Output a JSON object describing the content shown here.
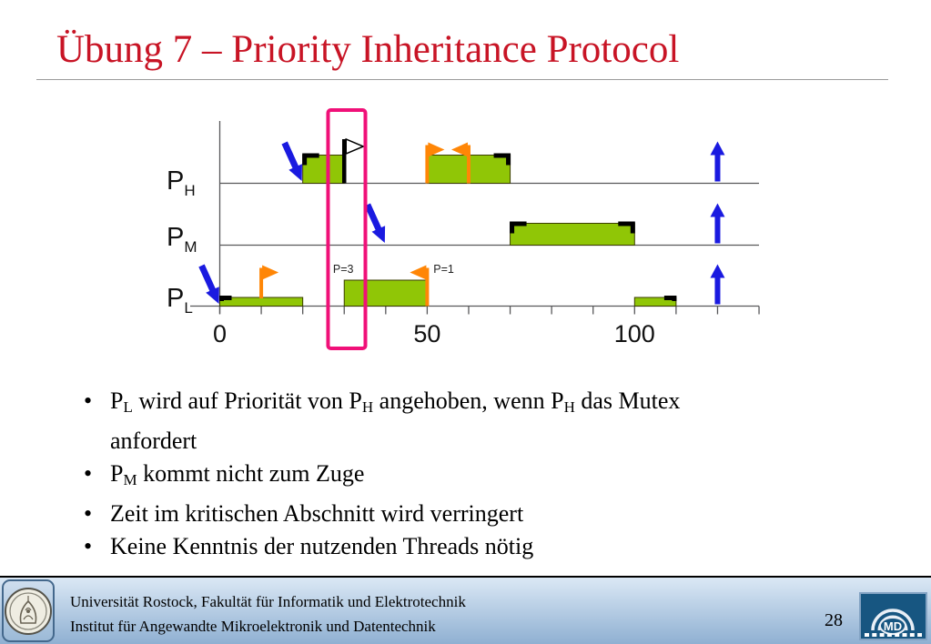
{
  "slide": {
    "title": "Übung 7 – Priority Inheritance Protocol"
  },
  "colors": {
    "title_red": "#c81425",
    "bar_green": "#90c606",
    "bar_border": "#3a3c00",
    "arrow_blue": "#1a1ae0",
    "flag_orange": "#ff8606",
    "highlight_pink": "#f01078",
    "axis_gray": "#58585a",
    "footer_top": "#dbe8f5",
    "footer_bottom": "#8fb0d2",
    "md_logo_blue": "#175681"
  },
  "diagram": {
    "row_labels": [
      {
        "id": "PH",
        "main": "P",
        "sub": "H"
      },
      {
        "id": "PM",
        "main": "P",
        "sub": "M"
      },
      {
        "id": "PL",
        "main": "P",
        "sub": "L"
      }
    ],
    "time_axis": {
      "start": 0,
      "end": 130,
      "tick_step": 10,
      "labels": [
        {
          "t": 0,
          "text": "0"
        },
        {
          "t": 50,
          "text": "50"
        },
        {
          "t": 100,
          "text": "100"
        }
      ]
    },
    "bars": [
      {
        "row": "PH",
        "t0": 20,
        "t1": 30,
        "size": "tall",
        "brackets": [
          "tl"
        ]
      },
      {
        "row": "PH",
        "t0": 50,
        "t1": 70,
        "size": "tall",
        "brackets": [
          "tr"
        ]
      },
      {
        "row": "PM",
        "t0": 70,
        "t1": 100,
        "size": "tall",
        "brackets": [
          "tl",
          "tr"
        ]
      },
      {
        "row": "PL",
        "t0": 0,
        "t1": 20,
        "size": "short",
        "brackets": [
          "tl"
        ]
      },
      {
        "row": "PL",
        "t0": 30,
        "t1": 50,
        "size": "tall",
        "brackets": []
      },
      {
        "row": "PL",
        "t0": 100,
        "t1": 110,
        "size": "short",
        "brackets": [
          "tr"
        ]
      }
    ],
    "activation_arrows": [
      {
        "row": "PH",
        "t": 20
      },
      {
        "row": "PM",
        "t": 40
      },
      {
        "row": "PL",
        "t": 0
      }
    ],
    "completion_arrows": [
      {
        "row": "PH",
        "t": 120
      },
      {
        "row": "PM",
        "t": 120
      },
      {
        "row": "PL",
        "t": 120
      }
    ],
    "mutex_flags": [
      {
        "row": "PL",
        "t": 10,
        "dir": "right",
        "pole": "bartop"
      },
      {
        "row": "PL",
        "t": 50,
        "dir": "left",
        "pole": "baseline"
      },
      {
        "row": "PH",
        "t": 50,
        "dir": "right",
        "pole": "baseline"
      },
      {
        "row": "PH",
        "t": 60,
        "dir": "left",
        "pole": "baseline"
      }
    ],
    "request_flag": {
      "row": "PH",
      "t": 30,
      "dir": "right"
    },
    "priority_labels": [
      {
        "text": "P=3",
        "t": 27.3
      },
      {
        "text": "P=1",
        "t": 51.5
      }
    ],
    "highlight": {
      "t0": 26.1,
      "t1": 35.1
    }
  },
  "bullets": [
    {
      "segments": [
        {
          "t": "P"
        },
        {
          "sub": "L"
        },
        {
          "t": " wird auf Priorität von P"
        },
        {
          "sub": "H"
        },
        {
          "t": " angehoben, wenn P"
        },
        {
          "sub": "H"
        },
        {
          "t": " das Mutex"
        },
        {
          "br": true
        },
        {
          "t": "anfordert"
        }
      ]
    },
    {
      "segments": [
        {
          "t": "P"
        },
        {
          "sub": "M"
        },
        {
          "t": " kommt nicht zum Zuge"
        }
      ]
    },
    {
      "segments": [
        {
          "t": "Zeit im kritischen Abschnitt wird verringert"
        }
      ]
    },
    {
      "segments": [
        {
          "t": "Keine Kenntnis der nutzenden Threads nötig"
        }
      ]
    }
  ],
  "footer": {
    "line1": "Universität Rostock, Fakultät für Informatik und Elektrotechnik",
    "line2": "Institut für Angewandte Mikroelektronik und Datentechnik",
    "page_number": "28",
    "md_logo_text": "MD"
  }
}
